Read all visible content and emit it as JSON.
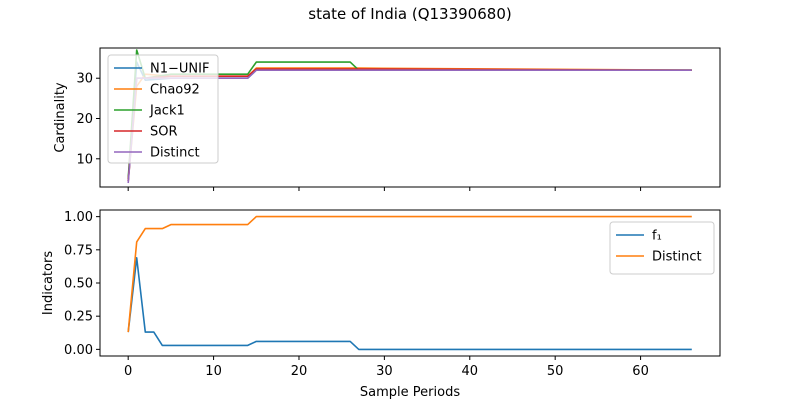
{
  "figure": {
    "title": "state of India (Q13390680)"
  },
  "chart_data": [
    {
      "type": "line",
      "ylabel": "Cardinality",
      "xlabel": "",
      "xlim": [
        -3.3,
        69.3
      ],
      "ylim": [
        3.0,
        37.5
      ],
      "yticks": [
        10,
        20,
        30
      ],
      "xticks": [
        0,
        10,
        20,
        30,
        40,
        50,
        60
      ],
      "show_xtick_labels": false,
      "grid": false,
      "legend": "top-left",
      "series": [
        {
          "name": "N1−UNIF",
          "color": "#1f77b4",
          "x": [
            0,
            1,
            2,
            5,
            14,
            15,
            27,
            66
          ],
          "y": [
            4.5,
            34,
            29.5,
            30,
            30,
            32,
            32,
            32
          ]
        },
        {
          "name": "Chao92",
          "color": "#ff7f0e",
          "x": [
            0,
            1,
            2,
            5,
            14,
            15,
            27,
            66
          ],
          "y": [
            4.5,
            28,
            31,
            30.5,
            30.5,
            32.5,
            32.5,
            32
          ]
        },
        {
          "name": "Jack1",
          "color": "#2ca02c",
          "x": [
            0,
            1,
            2,
            5,
            14,
            15,
            26,
            27,
            66
          ],
          "y": [
            5,
            37,
            30,
            31,
            31,
            34,
            34,
            32,
            32
          ]
        },
        {
          "name": "SOR",
          "color": "#d62728",
          "x": [
            0,
            1,
            2,
            5,
            14,
            15,
            27,
            66
          ],
          "y": [
            4.5,
            30,
            30,
            30.5,
            30.5,
            32.3,
            32.3,
            32
          ]
        },
        {
          "name": "Distinct",
          "color": "#9467bd",
          "x": [
            0,
            1,
            2,
            5,
            14,
            15,
            27,
            66
          ],
          "y": [
            4,
            30,
            30,
            30,
            30,
            32,
            32,
            32
          ]
        }
      ]
    },
    {
      "type": "line",
      "ylabel": "Indicators",
      "xlabel": "Sample Periods",
      "xlim": [
        -3.3,
        69.3
      ],
      "ylim": [
        -0.05,
        1.05
      ],
      "yticks": [
        0.0,
        0.25,
        0.5,
        0.75,
        1.0
      ],
      "ytick_labels": [
        "0.00",
        "0.25",
        "0.50",
        "0.75",
        "1.00"
      ],
      "xticks": [
        0,
        10,
        20,
        30,
        40,
        50,
        60
      ],
      "show_xtick_labels": true,
      "grid": false,
      "legend": "top-right",
      "series": [
        {
          "name": "f₁",
          "color": "#1f77b4",
          "x": [
            0,
            1,
            2,
            3,
            4,
            14,
            15,
            26,
            27,
            66
          ],
          "y": [
            0.13,
            0.69,
            0.13,
            0.13,
            0.03,
            0.03,
            0.06,
            0.06,
            0.0,
            0.0
          ]
        },
        {
          "name": "Distinct",
          "color": "#ff7f0e",
          "x": [
            0,
            1,
            2,
            4,
            5,
            14,
            15,
            66
          ],
          "y": [
            0.13,
            0.81,
            0.91,
            0.91,
            0.94,
            0.94,
            1.0,
            1.0
          ]
        }
      ]
    }
  ]
}
